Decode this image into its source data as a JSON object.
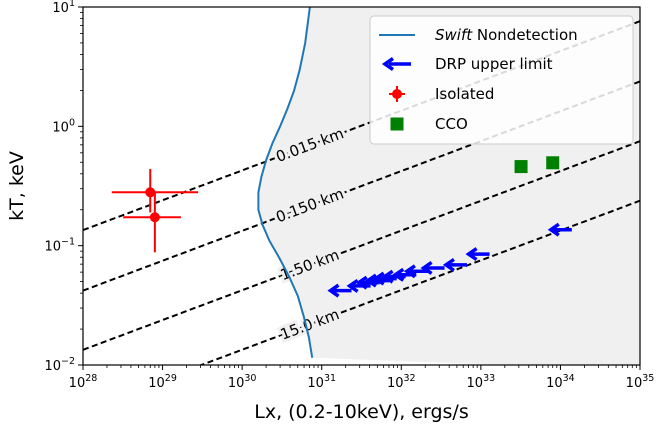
{
  "chart_data": {
    "type": "scatter",
    "xlabel": "Lx, (0.2-10keV), ergs/s",
    "ylabel": "kT, keV",
    "xscale": "log",
    "yscale": "log",
    "xlim": [
      1e+28,
      1e+35
    ],
    "ylim": [
      0.01,
      10
    ],
    "x_ticks": [
      {
        "value": 1e+28,
        "base": "10",
        "exp": "28"
      },
      {
        "value": 1e+29,
        "base": "10",
        "exp": "29"
      },
      {
        "value": 1e+30,
        "base": "10",
        "exp": "30"
      },
      {
        "value": 1e+31,
        "base": "10",
        "exp": "31"
      },
      {
        "value": 1e+32,
        "base": "10",
        "exp": "32"
      },
      {
        "value": 1e+33,
        "base": "10",
        "exp": "33"
      },
      {
        "value": 1e+34,
        "base": "10",
        "exp": "34"
      },
      {
        "value": 1e+35,
        "base": "10",
        "exp": "35"
      }
    ],
    "y_ticks": [
      {
        "value": 0.01,
        "base": "10",
        "exp": "−2"
      },
      {
        "value": 0.1,
        "base": "10",
        "exp": "−1"
      },
      {
        "value": 1,
        "base": "10",
        "exp": "0"
      },
      {
        "value": 10,
        "base": "10",
        "exp": "1"
      }
    ],
    "legend": {
      "location": "top-right",
      "entries": [
        {
          "key": "swift",
          "label_italic": "Swift",
          "label_rest": " Nondetection"
        },
        {
          "key": "drp",
          "label": "DRP upper limit"
        },
        {
          "key": "isolated",
          "label": "Isolated"
        },
        {
          "key": "cco",
          "label": "CCO"
        }
      ]
    },
    "colors": {
      "swift": "#1f77b4",
      "drp": "#0000ff",
      "isolated": "#ff0000",
      "cco": "#008000",
      "region_fill": "#f0f0f0",
      "contour": "#000000"
    },
    "contours": [
      {
        "label": "0.015 km",
        "x": [
          1e+28,
          1e+35
        ],
        "y": [
          0.135,
          7.6
        ]
      },
      {
        "label": "0.150 km",
        "x": [
          1e+28,
          1e+35
        ],
        "y": [
          0.042,
          2.38
        ]
      },
      {
        "label": "1.50 km",
        "x": [
          1e+28,
          1e+35
        ],
        "y": [
          0.0134,
          0.75
        ]
      },
      {
        "label": "15.0 km",
        "x": [
          1e+28,
          1e+35
        ],
        "y": [
          0.00425,
          0.238
        ]
      }
    ],
    "swift_nondetection": {
      "x": [
        7.1e+30,
        6.2e+30,
        5.3e+30,
        4.5e+30,
        3.7e+30,
        3e+30,
        2.4e+30,
        2e+30,
        1.75e+30,
        1.6e+30,
        1.6e+30,
        1.8e+30,
        2.2e+30,
        2.9e+30,
        3.9e+30,
        5e+30,
        6e+30,
        6.9e+30,
        7.6e+30
      ],
      "y": [
        10,
        5,
        3,
        2,
        1.4,
        1.0,
        0.72,
        0.52,
        0.38,
        0.28,
        0.2,
        0.15,
        0.11,
        0.08,
        0.055,
        0.038,
        0.025,
        0.017,
        0.0115
      ]
    },
    "isolated": [
      {
        "x": 7e+28,
        "y": 0.28,
        "xerr": [
          2.3e+28,
          2.8e+29
        ],
        "yerr": [
          0.19,
          0.44
        ]
      },
      {
        "x": 8e+28,
        "y": 0.173,
        "xerr": [
          3.2e+28,
          1.7e+29
        ],
        "yerr": [
          0.088,
          0.28
        ]
      }
    ],
    "cco": [
      {
        "x": 3.2e+33,
        "y": 0.46
      },
      {
        "x": 8e+33,
        "y": 0.495
      }
    ],
    "drp_upper_limits": [
      {
        "x": 1.35e+34,
        "y": 0.136
      },
      {
        "x": 1.25e+33,
        "y": 0.085
      },
      {
        "x": 6.5e+32,
        "y": 0.069
      },
      {
        "x": 3.4e+32,
        "y": 0.065
      },
      {
        "x": 2.1e+32,
        "y": 0.061
      },
      {
        "x": 1.5e+32,
        "y": 0.057
      },
      {
        "x": 1.1e+32,
        "y": 0.055
      },
      {
        "x": 8.5e+31,
        "y": 0.053
      },
      {
        "x": 6.8e+31,
        "y": 0.051
      },
      {
        "x": 5.2e+31,
        "y": 0.049
      },
      {
        "x": 4e+31,
        "y": 0.046
      },
      {
        "x": 2.3e+31,
        "y": 0.042
      }
    ]
  }
}
